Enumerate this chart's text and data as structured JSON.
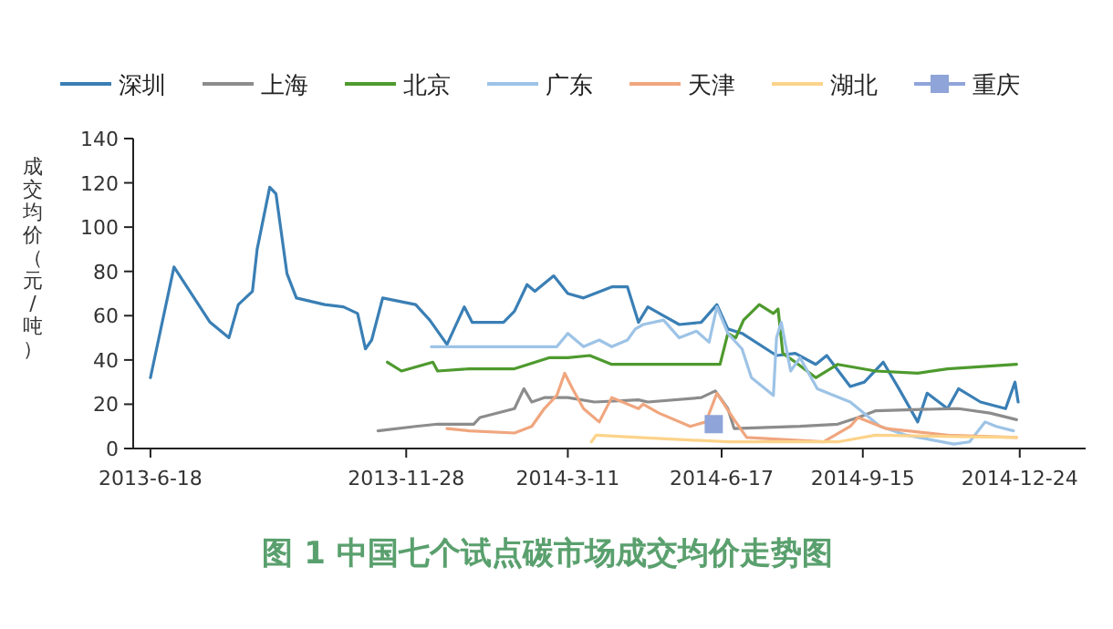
{
  "chart_data": {
    "type": "line",
    "title": "图 1 中国七个试点碳市场成交均价走势图",
    "ylabel": "成交均价（元/吨）",
    "xlim": [
      "2013-06-07",
      "2015-02-04"
    ],
    "ylim": [
      0,
      140
    ],
    "yticks": [
      0,
      20,
      40,
      60,
      80,
      100,
      120,
      140
    ],
    "xticks": [
      {
        "value": "2013-06-18",
        "label": "2013-6-18"
      },
      {
        "value": "2013-11-28",
        "label": "2013-11-28"
      },
      {
        "value": "2014-03-11",
        "label": "2014-3-11"
      },
      {
        "value": "2014-06-17",
        "label": "2014-6-17"
      },
      {
        "value": "2014-09-15",
        "label": "2014-9-15"
      },
      {
        "value": "2014-12-24",
        "label": "2014-12-24"
      }
    ],
    "legend": "top",
    "line_style": "solid",
    "series": [
      {
        "name": "深圳",
        "color": "#3a7fb5",
        "x": [
          "2013-06-18",
          "2013-07-03",
          "2013-07-26",
          "2013-08-07",
          "2013-08-13",
          "2013-08-22",
          "2013-08-25",
          "2013-09-02",
          "2013-09-06",
          "2013-09-13",
          "2013-09-19",
          "2013-10-07",
          "2013-10-19",
          "2013-10-28",
          "2013-11-02",
          "2013-11-06",
          "2013-11-13",
          "2013-12-04",
          "2013-12-13",
          "2013-12-24",
          "2014-01-04",
          "2014-01-09",
          "2014-01-29",
          "2014-02-05",
          "2014-02-13",
          "2014-02-18",
          "2014-03-02",
          "2014-03-11",
          "2014-03-21",
          "2014-04-08",
          "2014-04-18",
          "2014-04-25",
          "2014-05-01",
          "2014-05-11",
          "2014-05-21",
          "2014-06-04",
          "2014-06-14",
          "2014-06-21",
          "2014-06-30",
          "2014-07-22",
          "2014-08-03",
          "2014-08-16",
          "2014-08-23",
          "2014-09-07",
          "2014-09-16",
          "2014-09-28",
          "2014-10-08",
          "2014-10-20",
          "2014-10-26",
          "2014-11-08",
          "2014-11-15",
          "2014-11-29",
          "2014-12-15",
          "2014-12-21",
          "2014-12-23"
        ],
        "values": [
          32,
          82,
          57,
          50,
          65,
          71,
          90,
          118,
          115,
          79,
          68,
          65,
          64,
          61,
          45,
          49,
          68,
          65,
          58,
          47,
          64,
          57,
          57,
          62,
          74,
          71,
          78,
          70,
          68,
          73,
          73,
          57,
          64,
          60,
          56,
          57,
          65,
          54,
          52,
          42,
          43,
          38,
          42,
          28,
          30,
          39,
          27,
          12,
          25,
          18,
          27,
          21,
          18,
          30,
          21
        ]
      },
      {
        "name": "上海",
        "color": "#8c8c8c",
        "x": [
          "2013-11-10",
          "2013-12-04",
          "2013-12-18",
          "2014-01-10",
          "2014-01-14",
          "2014-02-05",
          "2014-02-11",
          "2014-02-16",
          "2014-02-24",
          "2014-03-11",
          "2014-03-28",
          "2014-04-25",
          "2014-05-01",
          "2014-06-04",
          "2014-06-13",
          "2014-06-21",
          "2014-06-25",
          "2014-08-06",
          "2014-08-30",
          "2014-09-12",
          "2014-09-23",
          "2014-11-08",
          "2014-11-15",
          "2014-12-05",
          "2014-12-22"
        ],
        "values": [
          8,
          10,
          11,
          11,
          14,
          18,
          27,
          21,
          23,
          23,
          21,
          22,
          21,
          23,
          26,
          18,
          9,
          10,
          11,
          14,
          17,
          18,
          18,
          16,
          13
        ]
      },
      {
        "name": "北京",
        "color": "#4e9a2e",
        "x": [
          "2013-11-16",
          "2013-11-25",
          "2013-12-15",
          "2013-12-18",
          "2014-01-07",
          "2014-02-05",
          "2014-02-27",
          "2014-03-11",
          "2014-03-25",
          "2014-04-08",
          "2014-04-25",
          "2014-05-17",
          "2014-06-16",
          "2014-06-21",
          "2014-06-26",
          "2014-07-01",
          "2014-07-11",
          "2014-07-20",
          "2014-07-23",
          "2014-07-26",
          "2014-08-03",
          "2014-08-16",
          "2014-08-30",
          "2014-09-23",
          "2014-10-20",
          "2014-11-08",
          "2014-12-22"
        ],
        "values": [
          39,
          35,
          39,
          35,
          36,
          36,
          41,
          41,
          42,
          38,
          38,
          38,
          38,
          52,
          50,
          58,
          65,
          61,
          63,
          43,
          39,
          32,
          38,
          35,
          34,
          36,
          38
        ]
      },
      {
        "name": "广东",
        "color": "#9dc3e6",
        "x": [
          "2013-12-14",
          "2014-03-04",
          "2014-03-11",
          "2014-03-21",
          "2014-03-31",
          "2014-04-08",
          "2014-04-18",
          "2014-04-23",
          "2014-04-28",
          "2014-05-11",
          "2014-05-21",
          "2014-06-01",
          "2014-06-09",
          "2014-06-14",
          "2014-06-21",
          "2014-06-30",
          "2014-07-06",
          "2014-07-20",
          "2014-07-22",
          "2014-07-25",
          "2014-07-31",
          "2014-08-06",
          "2014-08-17",
          "2014-09-07",
          "2014-09-26",
          "2014-10-13",
          "2014-11-12",
          "2014-11-22",
          "2014-12-02",
          "2014-12-09",
          "2014-12-20"
        ],
        "values": [
          46,
          46,
          52,
          46,
          49,
          46,
          49,
          54,
          56,
          58,
          50,
          53,
          48,
          64,
          52,
          45,
          32,
          24,
          50,
          57,
          35,
          41,
          27,
          21,
          10,
          6,
          2,
          3,
          12,
          10,
          8
        ]
      },
      {
        "name": "天津",
        "color": "#f0a67e",
        "x": [
          "2013-12-24",
          "2014-01-07",
          "2014-02-05",
          "2014-02-16",
          "2014-02-24",
          "2014-03-04",
          "2014-03-09",
          "2014-03-14",
          "2014-03-21",
          "2014-03-31",
          "2014-04-08",
          "2014-04-25",
          "2014-04-28",
          "2014-05-08",
          "2014-05-28",
          "2014-06-07",
          "2014-06-14",
          "2014-06-25",
          "2014-07-03",
          "2014-08-21",
          "2014-09-07",
          "2014-09-12",
          "2014-09-30",
          "2014-11-08",
          "2014-12-22"
        ],
        "values": [
          9,
          8,
          7,
          10,
          18,
          24,
          34,
          27,
          18,
          12,
          23,
          18,
          20,
          16,
          10,
          12,
          25,
          13,
          5,
          3,
          10,
          14,
          9,
          6,
          5
        ]
      },
      {
        "name": "湖北",
        "color": "#fcd38a",
        "x": [
          "2014-03-26",
          "2014-03-29",
          "2014-04-25",
          "2014-06-21",
          "2014-08-30",
          "2014-09-23",
          "2014-12-22"
        ],
        "values": [
          3,
          6,
          5,
          3,
          3,
          6,
          5
        ]
      },
      {
        "name": "重庆",
        "color": "#8fa4d8",
        "marker": "square",
        "x": [
          "2014-06-12"
        ],
        "values": [
          11
        ]
      }
    ]
  }
}
